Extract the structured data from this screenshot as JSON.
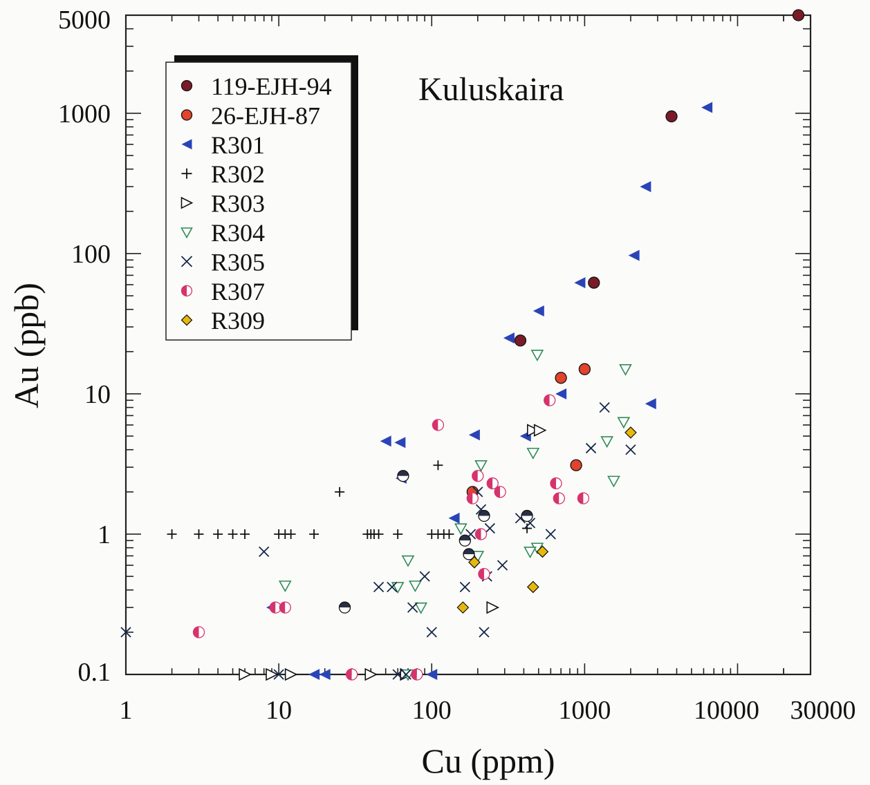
{
  "chart_data": {
    "type": "scatter",
    "title": "Kuluskaira",
    "xlabel": "Cu (ppm)",
    "ylabel": "Au (ppb)",
    "xscale": "log",
    "yscale": "log",
    "xlim": [
      1,
      30000
    ],
    "ylim": [
      0.1,
      5000
    ],
    "x_tick_labels": [
      "1",
      "10",
      "100",
      "1000",
      "10000",
      "30000"
    ],
    "y_tick_labels": [
      "0.1",
      "1",
      "10",
      "100",
      "1000",
      "5000"
    ],
    "legend_position": "top-left",
    "series": [
      {
        "name": "119-EJH-94",
        "marker": "circle-full",
        "color": "#7a1c28",
        "points": [
          [
            25000,
            5000
          ],
          [
            3700,
            950
          ],
          [
            1150,
            62
          ],
          [
            380,
            24
          ]
        ]
      },
      {
        "name": "26-EJH-87",
        "marker": "circle-full",
        "color": "#e0442c",
        "points": [
          [
            700,
            13
          ],
          [
            1000,
            15
          ],
          [
            880,
            3.1
          ],
          [
            185,
            2
          ]
        ]
      },
      {
        "name": "R301",
        "marker": "triangle-left",
        "color": "#2a44b8",
        "points": [
          [
            6300,
            1100
          ],
          [
            2500,
            300
          ],
          [
            2100,
            97
          ],
          [
            930,
            62
          ],
          [
            500,
            39
          ],
          [
            320,
            25
          ],
          [
            700,
            10
          ],
          [
            2700,
            8.5
          ],
          [
            410,
            5
          ],
          [
            190,
            5.1
          ],
          [
            50,
            4.6
          ],
          [
            62,
            4.5
          ],
          [
            63,
            2.5
          ],
          [
            140,
            1.3
          ],
          [
            9,
            0.3
          ],
          [
            17,
            0.1
          ],
          [
            20,
            0.1
          ],
          [
            100,
            0.1
          ]
        ]
      },
      {
        "name": "R302",
        "marker": "plus",
        "color": "#111111",
        "points": [
          [
            2,
            1
          ],
          [
            3,
            1
          ],
          [
            4,
            1
          ],
          [
            5,
            1
          ],
          [
            6,
            1
          ],
          [
            10,
            1
          ],
          [
            11,
            1
          ],
          [
            12,
            1
          ],
          [
            17,
            1
          ],
          [
            38,
            1
          ],
          [
            40,
            1
          ],
          [
            42,
            1
          ],
          [
            45,
            1
          ],
          [
            60,
            1
          ],
          [
            100,
            1
          ],
          [
            110,
            1
          ],
          [
            120,
            1
          ],
          [
            130,
            1
          ],
          [
            110,
            3.1
          ],
          [
            25,
            2
          ],
          [
            420,
            1.1
          ]
        ]
      },
      {
        "name": "R303",
        "marker": "triangle-right",
        "color": "#111111",
        "points": [
          [
            6,
            0.1
          ],
          [
            9,
            0.1
          ],
          [
            12,
            0.1
          ],
          [
            40,
            0.1
          ],
          [
            68,
            0.1
          ],
          [
            460,
            5.5
          ],
          [
            510,
            5.5
          ],
          [
            250,
            0.3
          ]
        ]
      },
      {
        "name": "R304",
        "marker": "triangle-down",
        "color": "#2e8a55",
        "points": [
          [
            1850,
            15
          ],
          [
            490,
            19
          ],
          [
            460,
            3.8
          ],
          [
            1800,
            6.3
          ],
          [
            1400,
            4.6
          ],
          [
            1550,
            2.4
          ],
          [
            210,
            3.1
          ],
          [
            155,
            1.1
          ],
          [
            490,
            0.8
          ],
          [
            440,
            0.75
          ],
          [
            70,
            0.65
          ],
          [
            78,
            0.43
          ],
          [
            85,
            0.3
          ],
          [
            200,
            0.7
          ],
          [
            11,
            0.43
          ],
          [
            60,
            0.42
          ],
          [
            70,
            0.1
          ]
        ]
      },
      {
        "name": "R305",
        "marker": "x",
        "color": "#15284a",
        "points": [
          [
            1,
            0.2
          ],
          [
            8,
            0.75
          ],
          [
            10,
            0.1
          ],
          [
            45,
            0.42
          ],
          [
            55,
            0.42
          ],
          [
            90,
            0.5
          ],
          [
            75,
            0.3
          ],
          [
            100,
            0.2
          ],
          [
            165,
            0.42
          ],
          [
            220,
            0.2
          ],
          [
            230,
            0.5
          ],
          [
            290,
            0.6
          ],
          [
            210,
            1.5
          ],
          [
            240,
            1.1
          ],
          [
            200,
            2
          ],
          [
            380,
            1.3
          ],
          [
            1350,
            8
          ],
          [
            1100,
            4.1
          ],
          [
            2000,
            4
          ],
          [
            600,
            1
          ],
          [
            440,
            1.2
          ],
          [
            60,
            0.1
          ],
          [
            68,
            0.1
          ],
          [
            180,
            1
          ]
        ]
      },
      {
        "name": "R307",
        "marker": "circle-half",
        "color": "#d6336c",
        "points": [
          [
            3,
            0.2
          ],
          [
            9.5,
            0.3
          ],
          [
            11,
            0.3
          ],
          [
            110,
            6
          ],
          [
            200,
            2.6
          ],
          [
            185,
            1.8
          ],
          [
            250,
            2.3
          ],
          [
            280,
            2
          ],
          [
            210,
            1
          ],
          [
            220,
            0.52
          ],
          [
            590,
            9
          ],
          [
            650,
            2.3
          ],
          [
            680,
            1.8
          ],
          [
            980,
            1.8
          ],
          [
            30,
            0.1
          ],
          [
            80,
            0.1
          ]
        ]
      },
      {
        "name": "R309",
        "marker": "diamond",
        "color": "#e6b80c",
        "points": [
          [
            2000,
            5.3
          ],
          [
            530,
            0.75
          ],
          [
            460,
            0.42
          ],
          [
            160,
            0.3
          ],
          [
            190,
            0.63
          ]
        ]
      },
      {
        "name": "",
        "marker": "circle-half-dark",
        "color": "#2a2f45",
        "points": [
          [
            65,
            2.6
          ],
          [
            27,
            0.3
          ],
          [
            165,
            0.9
          ],
          [
            175,
            0.72
          ],
          [
            220,
            1.35
          ],
          [
            420,
            1.35
          ]
        ]
      }
    ]
  }
}
